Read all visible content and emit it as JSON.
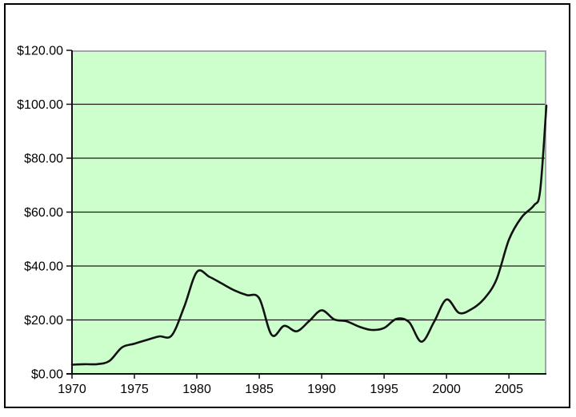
{
  "chart_data": {
    "type": "line",
    "title": "",
    "xlabel": "",
    "ylabel": "",
    "legend": "none",
    "grid": "horizontal",
    "smoothed": true,
    "markers": "none",
    "xlim": [
      1970,
      2008
    ],
    "ylim": [
      0,
      120
    ],
    "x_tick_values": [
      1970,
      1975,
      1980,
      1985,
      1990,
      1995,
      2000,
      2005
    ],
    "x_tick_labels": [
      "1970",
      "1975",
      "1980",
      "1985",
      "1990",
      "1995",
      "2000",
      "2005"
    ],
    "y_tick_values": [
      0,
      20,
      40,
      60,
      80,
      100,
      120
    ],
    "y_tick_labels": [
      "$0.00",
      "$20.00",
      "$40.00",
      "$60.00",
      "$80.00",
      "$100.00",
      "$120.00"
    ],
    "x": [
      1970,
      1971,
      1972,
      1973,
      1974,
      1975,
      1976,
      1977,
      1978,
      1979,
      1980,
      1981,
      1982,
      1983,
      1984,
      1985,
      1986,
      1987,
      1988,
      1989,
      1990,
      1991,
      1992,
      1993,
      1994,
      1995,
      1996,
      1997,
      1998,
      1999,
      2000,
      2001,
      2002,
      2003,
      2004,
      2005,
      2006,
      2007,
      2007.5,
      2008
    ],
    "y": [
      3.4,
      3.6,
      3.6,
      4.8,
      9.8,
      11.2,
      12.6,
      13.9,
      14.3,
      25.0,
      37.8,
      36.0,
      33.5,
      31.0,
      29.2,
      28.0,
      14.4,
      17.8,
      15.8,
      19.6,
      23.6,
      20.2,
      19.5,
      17.5,
      16.3,
      17.0,
      20.4,
      19.2,
      11.9,
      19.3,
      27.6,
      22.6,
      24.0,
      27.8,
      35.0,
      49.8,
      58.0,
      62.5,
      68.0,
      99.5
    ],
    "colors": {
      "page_bg": "#ffffff",
      "frame_border": "#000000",
      "plot_bg": "#ccffcc",
      "plot_border": "#a3a3ad",
      "grid": "#1a1a1a",
      "axis": "#111111",
      "line": "#111111",
      "tick_text": "#000000"
    }
  }
}
